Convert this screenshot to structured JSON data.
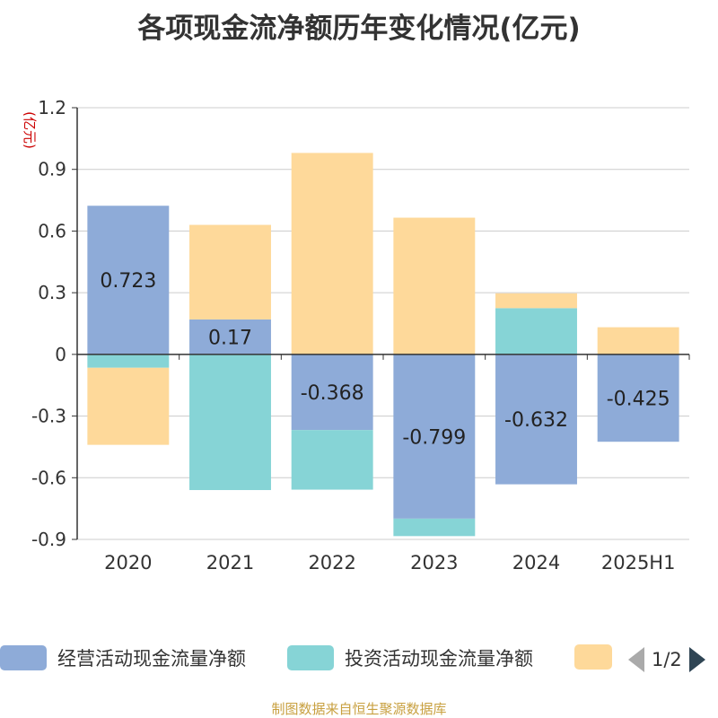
{
  "chart_data": {
    "type": "bar",
    "stacked": true,
    "title": "各项现金流净额历年变化情况(亿元)",
    "ylabel": "(亿元)",
    "categories": [
      "2020",
      "2021",
      "2022",
      "2023",
      "2024",
      "2025H1"
    ],
    "ylim": [
      -0.9,
      1.2
    ],
    "yticks": [
      1.2,
      0.9,
      0.6,
      0.3,
      0,
      -0.3,
      -0.6,
      -0.9
    ],
    "ytick_labels": [
      "1.2",
      "0.9",
      "0.6",
      "0.3",
      "0",
      "-0.3",
      "-0.6",
      "-0.9"
    ],
    "grid": true,
    "series": [
      {
        "name": "经营活动现金流量净额",
        "color": "#8eabd8",
        "values": [
          0.723,
          0.17,
          -0.368,
          -0.799,
          -0.632,
          -0.425
        ],
        "labels": [
          "0.723",
          "0.17",
          "-0.368",
          "-0.799",
          "-0.632",
          "-0.425"
        ]
      },
      {
        "name": "投资活动现金流量净额",
        "color": "#86d4d6",
        "values": [
          -0.065,
          -0.66,
          -0.29,
          -0.085,
          0.225,
          0
        ]
      },
      {
        "name": "",
        "color": "#fed99a",
        "values": [
          -0.375,
          0.46,
          0.98,
          0.665,
          0.072,
          0.132
        ]
      }
    ],
    "legend": {
      "position": "bottom",
      "page": "1/2"
    }
  },
  "source": "制图数据来自恒生聚源数据库"
}
